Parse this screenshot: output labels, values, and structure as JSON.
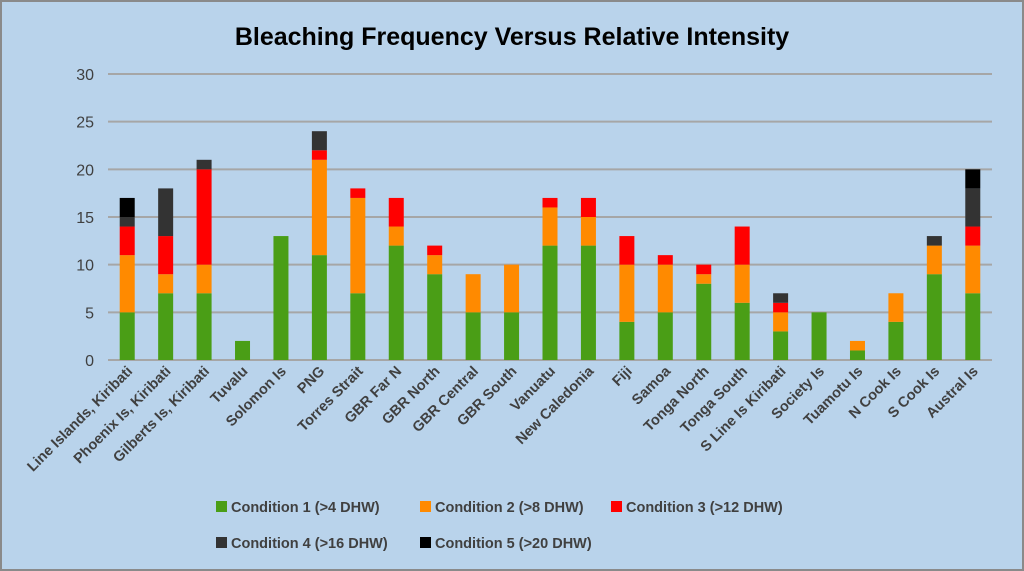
{
  "chart_data": {
    "type": "bar",
    "stacked": true,
    "title": "Bleaching Frequency Versus Relative Intensity",
    "xlabel": "",
    "ylabel": "",
    "ylim": [
      0,
      30
    ],
    "yticks": [
      0,
      5,
      10,
      15,
      20,
      25,
      30
    ],
    "grid": true,
    "legend_position": "bottom",
    "categories": [
      "Line Islands, Kiribati",
      "Phoenix Is, Kiribati",
      "Gilberts Is, Kiribati",
      "Tuvalu",
      "Solomon Is",
      "PNG",
      "Torres Strait",
      "GBR Far N",
      "GBR North",
      "GBR Central",
      "GBR South",
      "Vanuatu",
      "New Caledonia",
      "Fiji",
      "Samoa",
      "Tonga North",
      "Tonga South",
      "S Line Is Kiribati",
      "Society Is",
      "Tuamotu Is",
      "N Cook Is",
      "S Cook Is",
      "Austral Is"
    ],
    "series": [
      {
        "name": "Condition 1 (>4 DHW)",
        "color": "#4a9e16",
        "values": [
          5,
          7,
          7,
          2,
          13,
          11,
          7,
          12,
          9,
          5,
          5,
          12,
          12,
          4,
          5,
          8,
          6,
          3,
          5,
          1,
          4,
          9,
          7
        ]
      },
      {
        "name": "Condition 2 (>8 DHW)",
        "color": "#ff8a00",
        "values": [
          6,
          2,
          3,
          0,
          0,
          10,
          10,
          2,
          2,
          4,
          5,
          4,
          3,
          6,
          5,
          1,
          4,
          2,
          0,
          1,
          3,
          3,
          5
        ]
      },
      {
        "name": "Condition 3 (>12 DHW)",
        "color": "#ff0000",
        "values": [
          3,
          4,
          10,
          0,
          0,
          1,
          1,
          3,
          1,
          0,
          0,
          1,
          2,
          3,
          1,
          1,
          4,
          1,
          0,
          0,
          0,
          0,
          2
        ]
      },
      {
        "name": "Condition 4 (>16 DHW)",
        "color": "#333333",
        "values": [
          1,
          5,
          1,
          0,
          0,
          2,
          0,
          0,
          0,
          0,
          0,
          0,
          0,
          0,
          0,
          0,
          0,
          1,
          0,
          0,
          0,
          1,
          4
        ]
      },
      {
        "name": "Condition 5 (>20 DHW)",
        "color": "#000000",
        "values": [
          2,
          0,
          0,
          0,
          0,
          0,
          0,
          0,
          0,
          0,
          0,
          0,
          0,
          0,
          0,
          0,
          0,
          0,
          0,
          0,
          0,
          0,
          2
        ]
      }
    ]
  }
}
